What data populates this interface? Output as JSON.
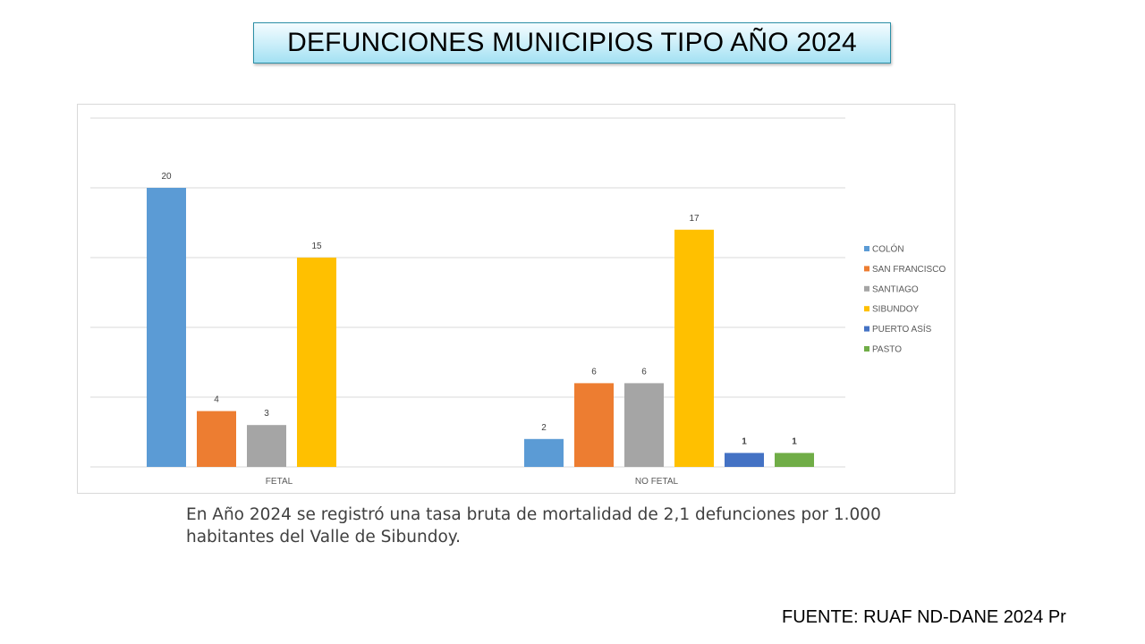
{
  "title": "DEFUNCIONES MUNICIPIOS TIPO AÑO 2024",
  "note": "En Año 2024 se registró una tasa bruta de mortalidad de 2,1 defunciones por 1.000 habitantes del Valle de Sibundoy.",
  "source": "FUENTE: RUAF ND-DANE 2024 Pr",
  "chart_data": {
    "type": "bar",
    "title": "",
    "xlabel": "",
    "ylabel": "",
    "ylim": [
      0,
      25
    ],
    "grid": true,
    "legend_position": "right",
    "categories": [
      "FETAL",
      "NO FETAL"
    ],
    "series": [
      {
        "name": "COLÓN",
        "color": "#5b9bd5",
        "values": [
          20,
          2
        ]
      },
      {
        "name": "SAN FRANCISCO",
        "color": "#ed7d31",
        "values": [
          4,
          6
        ]
      },
      {
        "name": "SANTIAGO",
        "color": "#a5a5a5",
        "values": [
          3,
          6
        ]
      },
      {
        "name": "SIBUNDOY",
        "color": "#ffc000",
        "values": [
          15,
          17
        ]
      },
      {
        "name": "PUERTO ASÍS",
        "color": "#4472c4",
        "values": [
          null,
          1
        ]
      },
      {
        "name": "PASTO",
        "color": "#70ad47",
        "values": [
          null,
          1
        ]
      }
    ]
  }
}
